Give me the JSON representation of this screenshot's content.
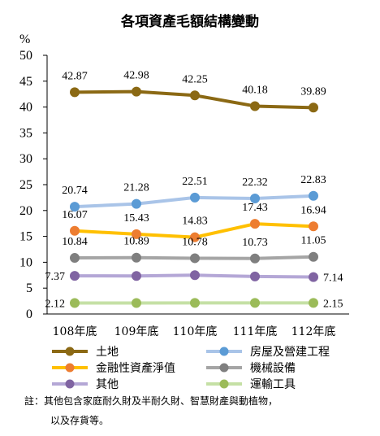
{
  "chart_data": {
    "type": "line",
    "title": "各項資產毛額結構變動",
    "ylabel": "%",
    "ylim": [
      0,
      50
    ],
    "yticks": [
      0,
      5,
      10,
      15,
      20,
      25,
      30,
      35,
      40,
      45,
      50
    ],
    "categories": [
      "108年底",
      "109年底",
      "110年底",
      "111年底",
      "112年底"
    ],
    "series": [
      {
        "name": "土地",
        "color": "#8B6914",
        "values": [
          42.87,
          42.98,
          42.25,
          40.18,
          39.89
        ],
        "labels": [
          "42.87",
          "42.98",
          "42.25",
          "40.18",
          "39.89"
        ]
      },
      {
        "name": "房屋及營建工程",
        "color": "#A9C4E8",
        "marker": "#5B9BD5",
        "values": [
          20.74,
          21.28,
          22.51,
          22.32,
          22.83
        ],
        "labels": [
          "20.74",
          "21.28",
          "22.51",
          "22.32",
          "22.83"
        ]
      },
      {
        "name": "金融性資產淨值",
        "color": "#FFC000",
        "marker": "#ED7D31",
        "values": [
          16.07,
          15.43,
          14.83,
          17.43,
          16.94
        ],
        "labels": [
          "16.07",
          "15.43",
          "14.83",
          "17.43",
          "16.94"
        ]
      },
      {
        "name": "機械設備",
        "color": "#A5A5A5",
        "marker": "#7F7F7F",
        "values": [
          10.84,
          10.89,
          10.78,
          10.73,
          11.05
        ],
        "labels": [
          "10.84",
          "10.89",
          "10.78",
          "10.73",
          "11.05"
        ]
      },
      {
        "name": "其他",
        "color": "#B4A7D6",
        "marker": "#8064A2",
        "values": [
          7.37,
          7.35,
          7.5,
          7.25,
          7.14
        ],
        "labels": [
          "7.37",
          "",
          "",
          "",
          "7.14"
        ]
      },
      {
        "name": "運輸工具",
        "color": "#C5E0A5",
        "marker": "#9BBB59",
        "values": [
          2.12,
          2.13,
          2.14,
          2.14,
          2.15
        ],
        "labels": [
          "2.12",
          "",
          "",
          "",
          "2.15"
        ]
      }
    ],
    "legend_placement": "bottom",
    "grid": false
  },
  "note": {
    "line1": "註：其他包含家庭耐久財及半耐久財、智慧財產與動植物，",
    "line2": "以及存貨等。"
  }
}
